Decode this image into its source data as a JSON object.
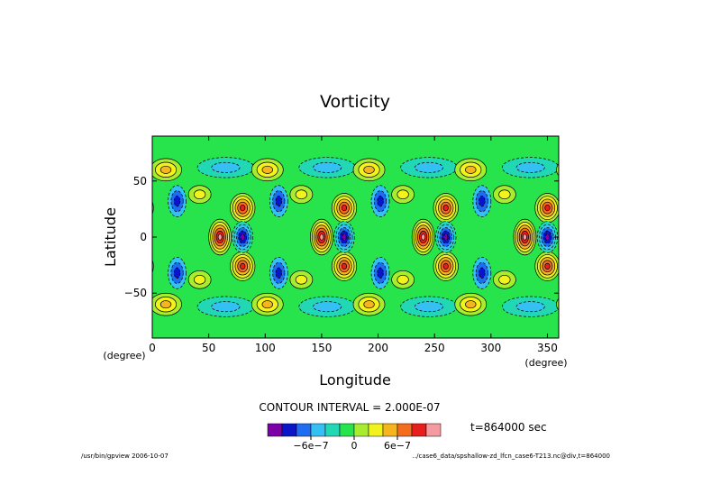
{
  "chart_data": {
    "type": "heatmap",
    "title": "Vorticity",
    "xlabel": "Longitude",
    "ylabel": "Latitude",
    "x_unit": "(degree)",
    "y_unit": "(degree)",
    "xlim": [
      0,
      360
    ],
    "ylim": [
      -90,
      90
    ],
    "x_ticks": [
      0,
      50,
      100,
      150,
      200,
      250,
      300,
      350
    ],
    "y_ticks": [
      -50,
      0,
      50
    ],
    "x_tick_labels": [
      "0",
      "50",
      "100",
      "150",
      "200",
      "250",
      "300",
      "350"
    ],
    "y_tick_labels": [
      "−50",
      "0",
      "50"
    ],
    "contour_interval_label": "CONTOUR INTERVAL = 2.000E-07",
    "time_label": "t=864000 sec",
    "colorbar": {
      "colors": [
        "#7a00a8",
        "#0a14c8",
        "#1e6cf0",
        "#34c0f2",
        "#22d8b4",
        "#28e44c",
        "#a8ec30",
        "#f2f21c",
        "#f6b41e",
        "#f46c1e",
        "#e81e1e",
        "#f49aa0"
      ],
      "tick_values": [
        -6e-07,
        0,
        6e-07
      ],
      "tick_labels": [
        "−6e−7",
        "0",
        "6e−7"
      ]
    },
    "field_features": {
      "wavenumber": 4,
      "background_level": 1e-07,
      "equatorial_positive_cores": [
        {
          "lon": 60,
          "lat": 0
        },
        {
          "lon": 150,
          "lat": 0
        },
        {
          "lon": 240,
          "lat": 0
        },
        {
          "lon": 330,
          "lat": 0
        }
      ],
      "equatorial_negative_cores": [
        {
          "lon": 80,
          "lat": 0
        },
        {
          "lon": 170,
          "lat": 0
        },
        {
          "lon": 260,
          "lat": 0
        },
        {
          "lon": 350,
          "lat": 0
        }
      ],
      "midlatitude_positive_cores": [
        {
          "lon": 80,
          "lat": 26
        },
        {
          "lon": 80,
          "lat": -26
        },
        {
          "lon": 170,
          "lat": 26
        },
        {
          "lon": 170,
          "lat": -26
        },
        {
          "lon": 260,
          "lat": 26
        },
        {
          "lon": 260,
          "lat": -26
        },
        {
          "lon": 350,
          "lat": 26
        },
        {
          "lon": 350,
          "lat": -26
        }
      ],
      "extratropical_positive_blobs": [
        {
          "lon": 12,
          "lat": 60
        },
        {
          "lon": 12,
          "lat": -60
        },
        {
          "lon": 102,
          "lat": 60
        },
        {
          "lon": 102,
          "lat": -60
        },
        {
          "lon": 192,
          "lat": 60
        },
        {
          "lon": 192,
          "lat": -60
        },
        {
          "lon": 282,
          "lat": 60
        },
        {
          "lon": 282,
          "lat": -60
        }
      ],
      "extratropical_negative_bands": [
        {
          "lon": 65,
          "lat": 62
        },
        {
          "lon": 65,
          "lat": -62
        },
        {
          "lon": 155,
          "lat": 62
        },
        {
          "lon": 155,
          "lat": -62
        },
        {
          "lon": 245,
          "lat": 62
        },
        {
          "lon": 245,
          "lat": -62
        },
        {
          "lon": 335,
          "lat": 62
        },
        {
          "lon": 335,
          "lat": -62
        }
      ]
    }
  },
  "footer": {
    "left": "/usr/bin/gpview  2006-10-07",
    "right": "../case6_data/spshallow-zd_lfcn_case6-T213.nc@div,t=864000"
  }
}
